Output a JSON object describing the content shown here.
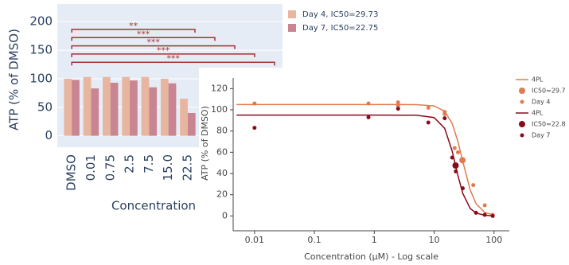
{
  "chart_data": [
    {
      "type": "bar",
      "y_label": "ATP (% of DMSO)",
      "x_label": "Concentration",
      "categories": [
        "DMSO",
        "0.01",
        "0.75",
        "2.5",
        "7.5",
        "15.0",
        "22.5"
      ],
      "series": [
        {
          "name": "Day 4, IC50=29.73",
          "color": "#e8b59f",
          "values": [
            100,
            103,
            103,
            103,
            103,
            100,
            65
          ]
        },
        {
          "name": "Day 7, IC50=22.75",
          "color": "#c98592",
          "values": [
            98,
            83,
            93,
            97,
            85,
            92,
            40
          ]
        }
      ],
      "annotations": [
        "**",
        "***",
        "***",
        "***",
        "***"
      ],
      "ylim": [
        -20,
        231
      ],
      "yticks": [
        0,
        50,
        100,
        150,
        200
      ],
      "grid": true
    },
    {
      "type": "scatter",
      "log_x": true,
      "x_label": "Concentration (µM) - Log scale",
      "y_label": "ATP (% of DMSO)",
      "xlim": [
        0.0044,
        180
      ],
      "ylim": [
        -14,
        130
      ],
      "xticks": [
        0.01,
        0.1,
        1,
        10,
        100
      ],
      "yticks": [
        0,
        20,
        40,
        60,
        80,
        100,
        120
      ],
      "grid": false,
      "series": [
        {
          "name": "4PL",
          "mode": "line",
          "color": "#e07b4f",
          "x": [
            0.005,
            1,
            5,
            10,
            15,
            20,
            25,
            30,
            40,
            50,
            70,
            100
          ],
          "values": [
            105,
            105,
            104.9,
            103.7,
            98.6,
            87.1,
            69.9,
            51.5,
            24.5,
            11.6,
            3.3,
            0.8
          ]
        },
        {
          "name": "IC50=29.7",
          "mode": "marker",
          "marker_size": 4,
          "color": "#e07b4f",
          "x": [
            29.7
          ],
          "values": [
            52.5
          ]
        },
        {
          "name": "Day 4",
          "mode": "marker",
          "marker_size": 2.5,
          "color": "#e07b4f",
          "x": [
            0.01,
            0.8,
            2.5,
            2.5,
            8,
            15,
            15,
            22,
            25,
            45,
            70,
            95
          ],
          "values": [
            106,
            106,
            107,
            104,
            102,
            98,
            96,
            64,
            60,
            29,
            10,
            1
          ]
        },
        {
          "name": "4PL",
          "mode": "line",
          "color": "#8b0a1a",
          "x": [
            0.005,
            1,
            5,
            10,
            15,
            20,
            25,
            30,
            40,
            50,
            70,
            100
          ],
          "values": [
            95,
            95,
            94.9,
            92.7,
            82.5,
            61.1,
            37.8,
            21.4,
            7.0,
            2.7,
            0.6,
            0.1
          ]
        },
        {
          "name": "IC50=22.8",
          "mode": "marker",
          "marker_size": 4,
          "color": "#8b0a1a",
          "x": [
            22.8
          ],
          "values": [
            47.5
          ]
        },
        {
          "name": "Day 7",
          "mode": "marker",
          "marker_size": 2.5,
          "color": "#8b0a1a",
          "x": [
            0.01,
            0.8,
            2.5,
            8,
            15,
            20,
            23,
            30,
            50,
            70,
            95
          ],
          "values": [
            83,
            93,
            101,
            88,
            92,
            55,
            42,
            26,
            3,
            1,
            0
          ]
        }
      ]
    }
  ]
}
